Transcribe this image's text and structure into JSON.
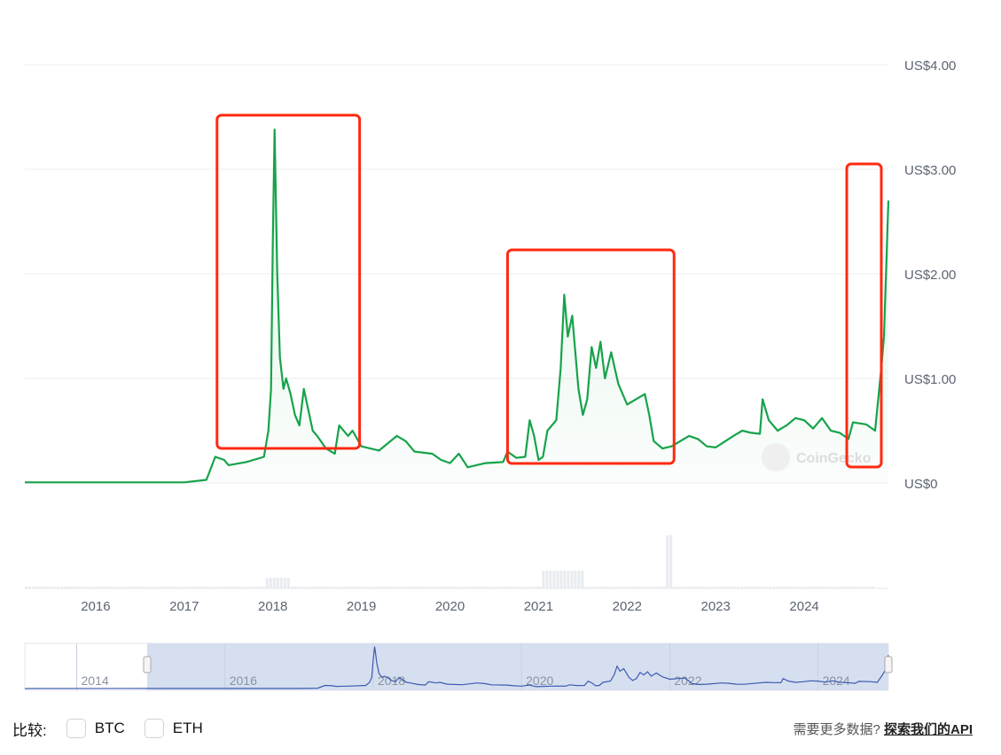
{
  "chart_data": {
    "type": "area",
    "y_tick_labels": [
      "US$0",
      "US$1.00",
      "US$2.00",
      "US$3.00",
      "US$4.00"
    ],
    "y_ticks": [
      0,
      1,
      2,
      3,
      4
    ],
    "ylim": [
      0,
      4
    ],
    "x_tick_labels": [
      "2016",
      "2017",
      "2018",
      "2019",
      "2020",
      "2021",
      "2022",
      "2023",
      "2024"
    ],
    "xlim": [
      2015.2,
      2024.95
    ],
    "grid": true,
    "line_color": "#16a34a",
    "watermark": "CoinGecko",
    "series": [
      {
        "x": [
          2015.2,
          2017.0,
          2017.25,
          2017.35,
          2017.45,
          2017.5,
          2017.7,
          2017.9,
          2017.95,
          2017.98,
          2018.0,
          2018.02,
          2018.05,
          2018.08,
          2018.12,
          2018.15,
          2018.2,
          2018.25,
          2018.3,
          2018.35,
          2018.4,
          2018.45,
          2018.5,
          2018.6,
          2018.7,
          2018.75,
          2018.85,
          2018.9,
          2019.0,
          2019.2,
          2019.4,
          2019.5,
          2019.6,
          2019.8,
          2019.9,
          2020.0,
          2020.1,
          2020.2,
          2020.4,
          2020.6,
          2020.65,
          2020.75,
          2020.85,
          2020.9,
          2020.95,
          2021.0,
          2021.05,
          2021.1,
          2021.2,
          2021.25,
          2021.29,
          2021.33,
          2021.38,
          2021.45,
          2021.5,
          2021.55,
          2021.6,
          2021.65,
          2021.7,
          2021.75,
          2021.82,
          2021.9,
          2022.0,
          2022.1,
          2022.2,
          2022.25,
          2022.3,
          2022.4,
          2022.5,
          2022.7,
          2022.8,
          2022.9,
          2023.0,
          2023.2,
          2023.3,
          2023.4,
          2023.5,
          2023.53,
          2023.6,
          2023.7,
          2023.8,
          2023.9,
          2024.0,
          2024.1,
          2024.2,
          2024.3,
          2024.4,
          2024.5,
          2024.55,
          2024.7,
          2024.8,
          2024.87,
          2024.9,
          2024.95
        ],
        "y": [
          0.006,
          0.006,
          0.03,
          0.25,
          0.22,
          0.17,
          0.2,
          0.25,
          0.5,
          0.9,
          2.3,
          3.38,
          2.0,
          1.2,
          0.9,
          1.0,
          0.85,
          0.65,
          0.55,
          0.9,
          0.7,
          0.5,
          0.45,
          0.33,
          0.28,
          0.55,
          0.45,
          0.5,
          0.35,
          0.31,
          0.45,
          0.4,
          0.3,
          0.28,
          0.22,
          0.19,
          0.28,
          0.15,
          0.19,
          0.2,
          0.3,
          0.24,
          0.25,
          0.6,
          0.45,
          0.22,
          0.25,
          0.5,
          0.6,
          1.1,
          1.8,
          1.4,
          1.6,
          0.9,
          0.65,
          0.8,
          1.3,
          1.1,
          1.35,
          1.0,
          1.25,
          0.95,
          0.75,
          0.8,
          0.85,
          0.65,
          0.4,
          0.33,
          0.35,
          0.45,
          0.42,
          0.35,
          0.34,
          0.45,
          0.5,
          0.48,
          0.47,
          0.8,
          0.6,
          0.5,
          0.55,
          0.62,
          0.6,
          0.52,
          0.62,
          0.5,
          0.48,
          0.42,
          0.58,
          0.56,
          0.5,
          1.1,
          1.4,
          2.7
        ]
      }
    ],
    "annotations": [
      {
        "type": "box",
        "color": "#ff2a10",
        "x": [
          2017.37,
          2018.98
        ]
      },
      {
        "type": "box",
        "color": "#ff2a10",
        "x": [
          2020.65,
          2022.53
        ]
      },
      {
        "type": "box",
        "color": "#ff2a10",
        "x": [
          2024.48,
          2024.87
        ]
      }
    ],
    "navigator": {
      "tick_labels": [
        "2014",
        "2016",
        "2018",
        "2020",
        "2022",
        "2024"
      ],
      "line_color": "#3b5bb0"
    }
  },
  "footer": {
    "compare_label": "比较:",
    "options": [
      "BTC",
      "ETH"
    ],
    "api_prompt": "需要更多数据?",
    "api_link": "探索我们的API"
  }
}
